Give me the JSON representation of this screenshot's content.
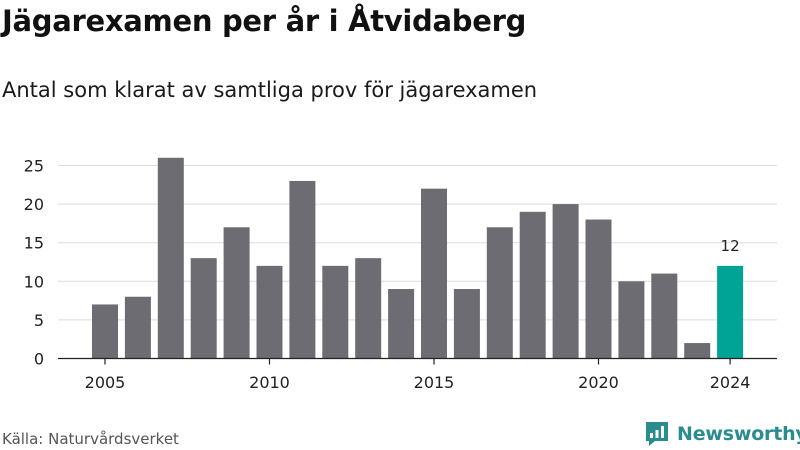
{
  "title": "Jägarexamen per år i Åtvidaberg",
  "subtitle": "Antal som klarat av samtliga prov för jägarexamen",
  "source": "Källa: Naturvårdsverket",
  "brand": {
    "name": "Newsworthy",
    "icon": "newsworthy-logo-icon",
    "color": "#2a8c8f"
  },
  "colors": {
    "bar": "#6d6c72",
    "highlight": "#00a497",
    "grid": "#dcdcdc",
    "axis": "#222222"
  },
  "chart_data": {
    "type": "bar",
    "x": [
      2005,
      2006,
      2007,
      2008,
      2009,
      2010,
      2011,
      2012,
      2013,
      2014,
      2015,
      2016,
      2017,
      2018,
      2019,
      2020,
      2021,
      2022,
      2023,
      2024
    ],
    "values": [
      7,
      8,
      26,
      13,
      17,
      12,
      23,
      12,
      13,
      9,
      22,
      9,
      17,
      19,
      20,
      18,
      10,
      11,
      2,
      12
    ],
    "highlight": {
      "x": 2024,
      "label": "12"
    },
    "xticks": [
      "2005",
      "2010",
      "2015",
      "2020",
      "2024"
    ],
    "yticks": [
      0,
      5,
      10,
      15,
      20,
      25
    ],
    "ylim": [
      0,
      27
    ],
    "grid": true,
    "legend": "none"
  }
}
